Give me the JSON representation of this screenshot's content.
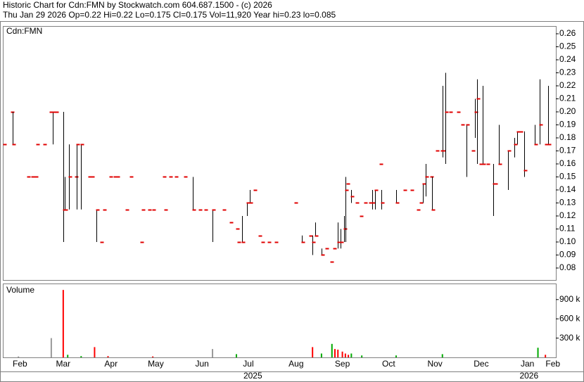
{
  "chart_data": {
    "type": "ohlc",
    "title": "Historic Chart for Cdn:FMN by Stockwatch.com 604.687.1500 - (c) 2026",
    "subtitle": "Thu Jan 29 2026  Op=0.22  Hi=0.22  Lo=0.175  Cl=0.175  Vol=11,920  Year hi=0.23  lo=0.085",
    "symbol_label": "Cdn:FMN",
    "volume_label": "Volume",
    "bar_color": "#000000",
    "close_color": "#e00000",
    "x": [
      0,
      5,
      6,
      16,
      19,
      21,
      22,
      27,
      31,
      33,
      35,
      40,
      41,
      44,
      48,
      49,
      52,
      57,
      59,
      62,
      65,
      67,
      71,
      74,
      76,
      82,
      85,
      92,
      93,
      97,
      100,
      107,
      108,
      111,
      115,
      121,
      127,
      131,
      135,
      140,
      147,
      152,
      156,
      157,
      160,
      163,
      165,
      168,
      171,
      173,
      177,
      182,
      195,
      200,
      205,
      207,
      209,
      213,
      216,
      219,
      221,
      224,
      226,
      228,
      229,
      230,
      233,
      236,
      239,
      242,
      245,
      247,
      249,
      252,
      253,
      263,
      268,
      273,
      277,
      279,
      281,
      283,
      286,
      287,
      290,
      293,
      294,
      296,
      299,
      304,
      307,
      310,
      314,
      316,
      317,
      319,
      321,
      324,
      328,
      329,
      332,
      338,
      342,
      344,
      346,
      349,
      356,
      359,
      363,
      365
    ],
    "high": [
      0.175,
      0.2,
      0.2,
      0.15,
      0.15,
      0.15,
      0.175,
      0.175,
      0.2,
      0.2,
      0.2,
      0.2,
      0.15,
      0.175,
      0.15,
      0.175,
      0.175,
      0.15,
      0.15,
      0.125,
      0.1,
      0.125,
      0.15,
      0.15,
      0.15,
      0.125,
      0.15,
      0.1,
      0.125,
      0.125,
      0.125,
      0.15,
      0.125,
      0.15,
      0.15,
      0.15,
      0.15,
      0.125,
      0.125,
      0.125,
      0.125,
      0.115,
      0.11,
      0.1,
      0.12,
      0.13,
      0.14,
      0.14,
      0.105,
      0.1,
      0.1,
      0.1,
      0.13,
      0.105,
      0.105,
      0.105,
      0.115,
      0.095,
      0.095,
      0.085,
      0.095,
      0.115,
      0.11,
      0.12,
      0.15,
      0.145,
      0.14,
      0.13,
      0.12,
      0.13,
      0.13,
      0.14,
      0.14,
      0.16,
      0.14,
      0.14,
      0.14,
      0.14,
      0.125,
      0.13,
      0.145,
      0.16,
      0.15,
      0.15,
      0.17,
      0.17,
      0.22,
      0.23,
      0.2,
      0.2,
      0.19,
      0.19,
      0.17,
      0.21,
      0.225,
      0.16,
      0.22,
      0.16,
      0.16,
      0.145,
      0.19,
      0.17,
      0.18,
      0.185,
      0.185,
      0.185,
      0.19,
      0.225,
      0.175,
      0.22
    ],
    "low": [
      0.175,
      0.2,
      0.175,
      0.15,
      0.15,
      0.15,
      0.175,
      0.175,
      0.2,
      0.175,
      0.2,
      0.1,
      0.125,
      0.125,
      0.15,
      0.125,
      0.125,
      0.15,
      0.15,
      0.1,
      0.1,
      0.125,
      0.15,
      0.15,
      0.15,
      0.125,
      0.15,
      0.1,
      0.125,
      0.125,
      0.125,
      0.15,
      0.125,
      0.15,
      0.15,
      0.15,
      0.125,
      0.125,
      0.125,
      0.1,
      0.125,
      0.115,
      0.11,
      0.1,
      0.1,
      0.12,
      0.13,
      0.14,
      0.105,
      0.1,
      0.1,
      0.1,
      0.13,
      0.1,
      0.105,
      0.09,
      0.105,
      0.09,
      0.095,
      0.085,
      0.095,
      0.095,
      0.095,
      0.1,
      0.1,
      0.145,
      0.13,
      0.13,
      0.12,
      0.13,
      0.13,
      0.125,
      0.125,
      0.16,
      0.125,
      0.13,
      0.14,
      0.14,
      0.125,
      0.13,
      0.13,
      0.135,
      0.15,
      0.125,
      0.17,
      0.17,
      0.165,
      0.16,
      0.2,
      0.2,
      0.19,
      0.15,
      0.17,
      0.18,
      0.16,
      0.16,
      0.16,
      0.16,
      0.12,
      0.145,
      0.16,
      0.14,
      0.165,
      0.175,
      0.185,
      0.15,
      0.175,
      0.175,
      0.175,
      0.175
    ],
    "close": [
      0.175,
      0.2,
      0.175,
      0.15,
      0.15,
      0.15,
      0.175,
      0.175,
      0.2,
      0.2,
      0.2,
      0.125,
      0.125,
      0.15,
      0.15,
      0.175,
      0.175,
      0.15,
      0.15,
      0.125,
      0.1,
      0.125,
      0.15,
      0.15,
      0.15,
      0.125,
      0.15,
      0.1,
      0.125,
      0.125,
      0.125,
      0.15,
      0.125,
      0.15,
      0.15,
      0.15,
      0.125,
      0.125,
      0.125,
      0.125,
      0.125,
      0.115,
      0.11,
      0.1,
      0.1,
      0.13,
      0.13,
      0.14,
      0.105,
      0.1,
      0.1,
      0.1,
      0.13,
      0.1,
      0.105,
      0.1,
      0.105,
      0.09,
      0.095,
      0.085,
      0.095,
      0.1,
      0.1,
      0.11,
      0.14,
      0.145,
      0.135,
      0.13,
      0.12,
      0.13,
      0.13,
      0.13,
      0.14,
      0.16,
      0.13,
      0.13,
      0.14,
      0.14,
      0.125,
      0.13,
      0.145,
      0.15,
      0.15,
      0.125,
      0.17,
      0.17,
      0.17,
      0.2,
      0.2,
      0.2,
      0.19,
      0.19,
      0.17,
      0.2,
      0.21,
      0.16,
      0.16,
      0.16,
      0.145,
      0.145,
      0.16,
      0.17,
      0.175,
      0.185,
      0.185,
      0.155,
      0.175,
      0.19,
      0.175,
      0.175
    ],
    "xlim": [
      0,
      370
    ],
    "xticks": [
      {
        "value": 11,
        "label": "Feb"
      },
      {
        "value": 40,
        "label": "Mar"
      },
      {
        "value": 72,
        "label": "Apr"
      },
      {
        "value": 102,
        "label": "May"
      },
      {
        "value": 133,
        "label": "Jun"
      },
      {
        "value": 164,
        "label": "Jul"
      },
      {
        "value": 196,
        "label": "Aug"
      },
      {
        "value": 227,
        "label": "Sep"
      },
      {
        "value": 258,
        "label": "Oct"
      },
      {
        "value": 289,
        "label": "Nov"
      },
      {
        "value": 320,
        "label": "Dec"
      },
      {
        "value": 351,
        "label": "Jan"
      },
      {
        "value": 368,
        "label": "Feb"
      }
    ],
    "year_ticks": [
      {
        "value": 167,
        "label": "2025"
      },
      {
        "value": 352,
        "label": "2026"
      }
    ],
    "ylim": [
      0.0708,
      0.2654
    ],
    "yticks": [
      0.08,
      0.09,
      {
        "value": 0.1,
        "label": "0.10"
      },
      0.11,
      0.12,
      0.13,
      0.14,
      0.15,
      0.16,
      0.17,
      0.18,
      0.19,
      {
        "value": 0.2,
        "label": "0.20"
      },
      0.21,
      0.22,
      0.23,
      0.24,
      0.25,
      0.26
    ],
    "volume": {
      "x": [
        10,
        32,
        40,
        43,
        52,
        61,
        70,
        100,
        140,
        156,
        207,
        213,
        220,
        222,
        224,
        227,
        229,
        231,
        233,
        240,
        263,
        294,
        358,
        363
      ],
      "values": [
        15000,
        300000,
        1050000,
        40000,
        20000,
        160000,
        20000,
        15000,
        130000,
        50000,
        160000,
        60000,
        210000,
        130000,
        120000,
        90000,
        60000,
        40000,
        60000,
        30000,
        30000,
        50000,
        150000,
        40000
      ],
      "colors": [
        "#999999",
        "#999999",
        "#ff0000",
        "#00aa00",
        "#00aa00",
        "#ff0000",
        "#ff0000",
        "#ff0000",
        "#999999",
        "#00aa00",
        "#ff0000",
        "#00aa00",
        "#00aa00",
        "#ff0000",
        "#ff0000",
        "#ff0000",
        "#ff0000",
        "#ff0000",
        "#00aa00",
        "#00aa00",
        "#00aa00",
        "#00aa00",
        "#00aa00",
        "#ff0000"
      ],
      "ylim": [
        0,
        1150000
      ],
      "yticks": [
        {
          "value": 300000,
          "label": "300 k"
        },
        {
          "value": 600000,
          "label": "600 k"
        },
        {
          "value": 900000,
          "label": "900 k"
        }
      ]
    }
  }
}
